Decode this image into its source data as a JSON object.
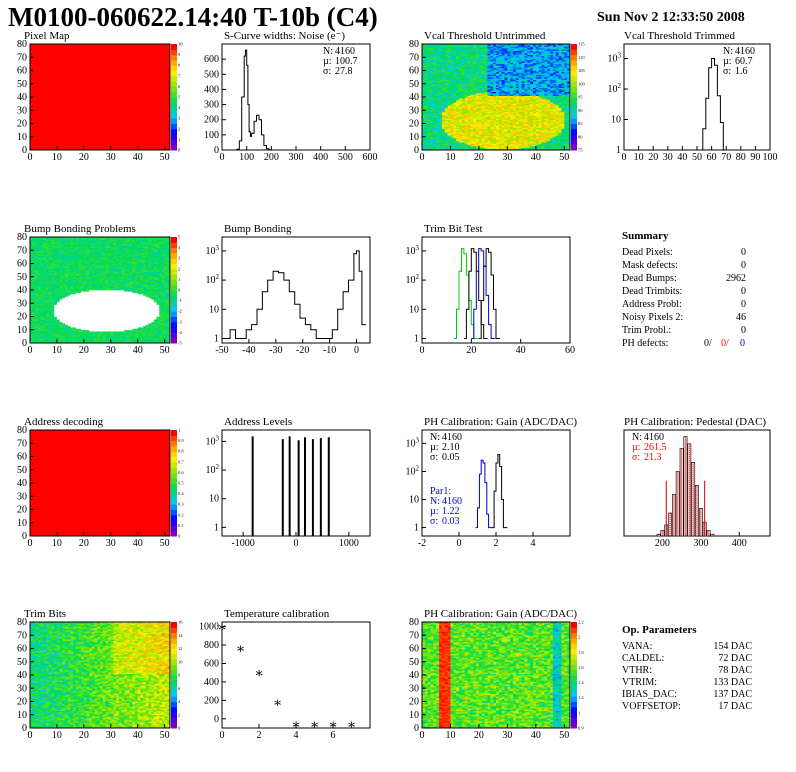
{
  "header": {
    "title": "M0100-060622.14:40 T-10b (C4)",
    "date": "Sun Nov  2 12:33:50 2008"
  },
  "colors": {
    "red": "#ff0000",
    "blue": "#0000cc",
    "green": "#00cc00",
    "black": "#000000"
  },
  "chart_data": [
    {
      "id": "pixel-map",
      "type": "heatmap",
      "title": "Pixel Map",
      "xlim": [
        0,
        52
      ],
      "ylim": [
        0,
        80
      ],
      "xticks": [
        0,
        10,
        20,
        30,
        40,
        50
      ],
      "yticks": [
        0,
        10,
        20,
        30,
        40,
        50,
        60,
        70,
        80
      ],
      "fill": "uniform",
      "value": 10,
      "zticks": [
        0,
        1,
        2,
        3,
        4,
        5,
        6,
        7,
        8,
        9,
        10
      ]
    },
    {
      "id": "scurve-noise",
      "type": "line",
      "title": "S-Curve widths: Noise (e⁻)",
      "xlim": [
        0,
        600
      ],
      "ylim": [
        0,
        700
      ],
      "xticks": [
        0,
        100,
        200,
        300,
        400,
        500,
        600
      ],
      "yticks": [
        0,
        100,
        200,
        300,
        400,
        500,
        600
      ],
      "x": [
        50,
        60,
        70,
        80,
        90,
        95,
        100,
        105,
        110,
        115,
        120,
        130,
        140,
        150,
        160,
        170,
        180,
        190,
        200
      ],
      "y": [
        0,
        5,
        60,
        350,
        620,
        660,
        560,
        300,
        120,
        90,
        110,
        190,
        230,
        200,
        100,
        30,
        8,
        2,
        0
      ],
      "stats": [
        {
          "label": "N:",
          "value": "4160"
        },
        {
          "label": "µ:",
          "value": "100.7"
        },
        {
          "label": "σ:",
          "value": "27.8"
        }
      ]
    },
    {
      "id": "vcal-untrimmed",
      "type": "heatmap",
      "title": "Vcal Threshold Untrimmed",
      "xlim": [
        0,
        52
      ],
      "ylim": [
        0,
        80
      ],
      "xticks": [
        0,
        10,
        20,
        30,
        40,
        50
      ],
      "yticks": [
        0,
        10,
        20,
        30,
        40,
        50,
        60,
        70,
        80
      ],
      "zticks": [
        75,
        80,
        85,
        90,
        95,
        100,
        105,
        110,
        115
      ]
    },
    {
      "id": "vcal-trimmed",
      "type": "line",
      "title": "Vcal Threshold Trimmed",
      "log_y": true,
      "xlim": [
        0,
        100
      ],
      "ylim": [
        1,
        3000
      ],
      "xticks": [
        0,
        10,
        20,
        30,
        40,
        50,
        60,
        70,
        80,
        90,
        100
      ],
      "yticks": [
        1,
        10,
        100,
        1000
      ],
      "x": [
        52,
        54,
        56,
        58,
        60,
        62,
        64,
        66,
        68,
        70
      ],
      "y": [
        1,
        5,
        50,
        500,
        1000,
        600,
        60,
        8,
        1,
        1
      ],
      "stats": [
        {
          "label": "N:",
          "value": "4160"
        },
        {
          "label": "µ:",
          "value": "60.7"
        },
        {
          "label": "σ:",
          "value": "1.6"
        }
      ]
    },
    {
      "id": "bump-map",
      "type": "heatmap",
      "title": "Bump Bonding Problems",
      "xlim": [
        0,
        52
      ],
      "ylim": [
        0,
        80
      ],
      "xticks": [
        0,
        10,
        20,
        30,
        40,
        50
      ],
      "yticks": [
        0,
        10,
        20,
        30,
        40,
        50,
        60,
        70,
        80
      ],
      "zticks": [
        -5,
        -4,
        -3,
        -2,
        -1,
        0,
        1,
        2,
        3,
        4,
        5
      ]
    },
    {
      "id": "bump-hist",
      "type": "line",
      "title": "Bump Bonding",
      "log_y": true,
      "xlim": [
        -50,
        5
      ],
      "ylim": [
        0.7,
        3000
      ],
      "xticks": [
        -50,
        -40,
        -30,
        -20,
        -10,
        0
      ],
      "yticks": [
        1,
        10,
        100,
        1000
      ],
      "x": [
        -49,
        -47,
        -45,
        -43,
        -41,
        -39,
        -37,
        -35,
        -33,
        -31,
        -29,
        -27,
        -25,
        -23,
        -21,
        -19,
        -17,
        -15,
        -13,
        -11,
        -9,
        -7,
        -5,
        -3,
        -1,
        0,
        1,
        2
      ],
      "y": [
        1,
        2,
        1,
        1,
        2,
        3,
        10,
        40,
        100,
        200,
        180,
        100,
        40,
        15,
        5,
        3,
        2,
        1,
        1,
        1,
        2,
        10,
        40,
        100,
        800,
        1000,
        200,
        3
      ]
    },
    {
      "id": "trim-bit-test",
      "type": "line",
      "title": "Trim Bit Test",
      "log_y": true,
      "xlim": [
        0,
        60
      ],
      "ylim": [
        0.7,
        3000
      ],
      "xticks": [
        0,
        20,
        40,
        60
      ],
      "yticks": [
        1,
        10,
        100,
        1000
      ],
      "series": [
        {
          "color": "#00cc00",
          "x": [
            13,
            14,
            15,
            16,
            17,
            18,
            19,
            20,
            21
          ],
          "y": [
            1,
            10,
            200,
            1200,
            800,
            150,
            20,
            3,
            1
          ]
        },
        {
          "color": "#000000",
          "x": [
            17,
            18,
            19,
            20,
            21,
            22,
            23,
            24,
            25
          ],
          "y": [
            1,
            10,
            200,
            1200,
            900,
            200,
            20,
            3,
            1
          ]
        },
        {
          "color": "#0000cc",
          "x": [
            20,
            21,
            22,
            23,
            24,
            25,
            26,
            27,
            28
          ],
          "y": [
            1,
            10,
            200,
            1200,
            1000,
            300,
            30,
            3,
            1
          ]
        },
        {
          "color": "#000000",
          "x": [
            23,
            24,
            25,
            26,
            27,
            28,
            29,
            30
          ],
          "y": [
            1,
            20,
            300,
            1200,
            900,
            150,
            10,
            1
          ]
        }
      ]
    },
    {
      "id": "address-decoding",
      "type": "heatmap",
      "title": "Address decoding",
      "xlim": [
        0,
        52
      ],
      "ylim": [
        0,
        80
      ],
      "xticks": [
        0,
        10,
        20,
        30,
        40,
        50
      ],
      "yticks": [
        0,
        10,
        20,
        30,
        40,
        50,
        60,
        70,
        80
      ],
      "fill": "uniform",
      "value": 1,
      "zticks": [
        0,
        0.1,
        0.2,
        0.3,
        0.4,
        0.5,
        0.6,
        0.7,
        0.8,
        0.9,
        1
      ]
    },
    {
      "id": "address-levels",
      "type": "bar",
      "title": "Address Levels",
      "log_y": true,
      "xlim": [
        -1400,
        1400
      ],
      "ylim": [
        0.5,
        2500
      ],
      "xticks": [
        -1000,
        0,
        1000
      ],
      "yticks": [
        1,
        10,
        100,
        1000
      ],
      "x": [
        -820,
        -250,
        -120,
        50,
        170,
        320,
        470,
        620
      ],
      "y": [
        1500,
        1200,
        1500,
        1100,
        1400,
        1200,
        1300,
        1400
      ]
    },
    {
      "id": "ph-gain",
      "type": "line",
      "title": "PH Calibration: Gain (ADC/DAC)",
      "log_y": true,
      "xlim": [
        -2,
        6
      ],
      "ylim": [
        0.5,
        3000
      ],
      "xticks": [
        -2,
        0,
        2,
        4
      ],
      "yticks": [
        1,
        10,
        100,
        1000
      ],
      "series": [
        {
          "color": "#000000",
          "x": [
            1.8,
            1.9,
            2.0,
            2.1,
            2.2,
            2.3,
            2.4
          ],
          "y": [
            1,
            20,
            200,
            400,
            150,
            10,
            1
          ]
        },
        {
          "color": "#0000cc",
          "x": [
            0.9,
            1.0,
            1.1,
            1.2,
            1.3,
            1.4,
            1.5,
            1.6
          ],
          "y": [
            1,
            5,
            80,
            250,
            200,
            40,
            3,
            1
          ]
        }
      ],
      "stats": [
        {
          "label": "N:",
          "value": "4160"
        },
        {
          "label": "µ:",
          "value": "2.10"
        },
        {
          "label": "σ:",
          "value": "0.05"
        }
      ],
      "stats2_title": "Par1:",
      "stats2": [
        {
          "label": "N:",
          "value": "4160"
        },
        {
          "label": "µ:",
          "value": "1.22"
        },
        {
          "label": "σ:",
          "value": "0.03"
        }
      ]
    },
    {
      "id": "ph-pedestal",
      "type": "bar",
      "title": "PH Calibration: Pedestal (DAC)",
      "xlim": [
        100,
        480
      ],
      "ylim": [
        0,
        115
      ],
      "xticks": [
        200,
        300,
        400
      ],
      "x": [
        190,
        200,
        210,
        220,
        230,
        240,
        250,
        260,
        270,
        280,
        290,
        300,
        310,
        320,
        330
      ],
      "y": [
        2,
        6,
        12,
        25,
        45,
        70,
        95,
        108,
        100,
        80,
        55,
        30,
        15,
        6,
        2
      ],
      "stats": [
        {
          "label": "N:",
          "value": "4160"
        },
        {
          "label": "µ:",
          "value": "261.5"
        },
        {
          "label": "σ:",
          "value": "21.3"
        }
      ]
    },
    {
      "id": "trim-bits",
      "type": "heatmap",
      "title": "Trim Bits",
      "xlim": [
        0,
        52
      ],
      "ylim": [
        0,
        80
      ],
      "xticks": [
        0,
        10,
        20,
        30,
        40,
        50
      ],
      "yticks": [
        0,
        10,
        20,
        30,
        40,
        50,
        60,
        70,
        80
      ],
      "zticks": [
        0,
        2,
        4,
        6,
        8,
        10,
        12,
        14,
        16
      ]
    },
    {
      "id": "temperature",
      "type": "scatter",
      "title": "Temperature calibration",
      "xlim": [
        0,
        8
      ],
      "ylim": [
        -100,
        1050
      ],
      "xticks": [
        0,
        2,
        4,
        6
      ],
      "yticks": [
        0,
        200,
        400,
        600,
        800,
        1000
      ],
      "x": [
        0,
        1,
        2,
        3,
        4,
        5,
        6,
        7
      ],
      "y": [
        1000,
        770,
        500,
        180,
        -55,
        -55,
        -55,
        -55
      ]
    },
    {
      "id": "ph-gain-map",
      "type": "heatmap",
      "title": "PH Calibration: Gain (ADC/DAC)",
      "xlim": [
        0,
        52
      ],
      "ylim": [
        0,
        80
      ],
      "xticks": [
        0,
        10,
        20,
        30,
        40,
        50
      ],
      "yticks": [
        0,
        10,
        20,
        30,
        40,
        50,
        60,
        70,
        80
      ],
      "zticks": [
        0.9,
        1.0,
        1.2,
        1.4,
        1.6,
        1.8,
        2.0,
        2.2
      ]
    }
  ],
  "summary": {
    "title": "Summary",
    "rows": [
      {
        "label": "Dead Pixels:",
        "value": "0"
      },
      {
        "label": "Mask defects:",
        "value": "0"
      },
      {
        "label": "Dead Bumps:",
        "value": "2962"
      },
      {
        "label": "Dead Trimbits:",
        "value": "0"
      },
      {
        "label": "Address Probl:",
        "value": "0"
      },
      {
        "label": "Noisy Pixels 2:",
        "value": "46"
      },
      {
        "label": "Trim Probl.:",
        "value": "0"
      }
    ],
    "ph_label": "PH defects:",
    "ph_values": [
      "0/",
      "0/",
      "0"
    ]
  },
  "op_params": {
    "title": "Op. Parameters",
    "rows": [
      {
        "label": "VANA:",
        "value": "154 DAC"
      },
      {
        "label": "CALDEL:",
        "value": "72 DAC"
      },
      {
        "label": "VTHR:",
        "value": "78 DAC"
      },
      {
        "label": "VTRIM:",
        "value": "133 DAC"
      },
      {
        "label": "IBIAS_DAC:",
        "value": "137 DAC"
      },
      {
        "label": "VOFFSETOP:",
        "value": "17 DAC"
      }
    ]
  }
}
